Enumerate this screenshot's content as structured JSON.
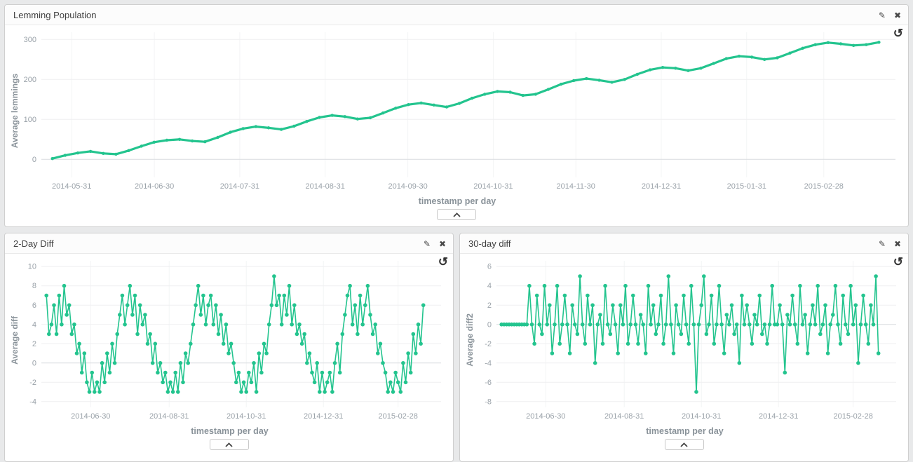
{
  "accent": {
    "line_color": "#23c48e"
  },
  "icons": {
    "edit": "✎",
    "close": "✖",
    "rotate": "↺"
  },
  "panels": [
    {
      "title": "Lemming Population",
      "ylabel": "Average lemmings",
      "xlabel": "timestamp per day"
    },
    {
      "title": "2-Day Diff",
      "ylabel": "Average diff",
      "xlabel": "timestamp per day"
    },
    {
      "title": "30-day diff",
      "ylabel": "Average diff2",
      "xlabel": "timestamp per day"
    }
  ],
  "chart_data": [
    {
      "type": "line",
      "title": "Lemming Population",
      "xlabel": "timestamp per day",
      "ylabel": "Average lemmings",
      "grid": true,
      "legend": "none",
      "x_range": [
        -4,
        306
      ],
      "y_range": [
        -45,
        318
      ],
      "x_start": 0,
      "x_end": 300,
      "line_width": 3.2,
      "marker_radius": 2.2,
      "x_ticks": [
        [
          7,
          "2014-05-31"
        ],
        [
          37,
          "2014-06-30"
        ],
        [
          68,
          "2014-07-31"
        ],
        [
          99,
          "2014-08-31"
        ],
        [
          129,
          "2014-09-30"
        ],
        [
          160,
          "2014-10-31"
        ],
        [
          190,
          "2014-11-30"
        ],
        [
          221,
          "2014-12-31"
        ],
        [
          252,
          "2015-01-31"
        ],
        [
          280,
          "2015-02-28"
        ]
      ],
      "y_ticks": [
        [
          0,
          "0"
        ],
        [
          100,
          "100"
        ],
        [
          200,
          "200"
        ],
        [
          300,
          "300"
        ]
      ],
      "values": [
        2,
        10,
        16,
        20,
        15,
        13,
        22,
        33,
        43,
        48,
        50,
        46,
        44,
        55,
        68,
        77,
        82,
        79,
        75,
        83,
        95,
        105,
        110,
        107,
        101,
        104,
        116,
        128,
        137,
        141,
        136,
        131,
        140,
        153,
        163,
        170,
        168,
        160,
        163,
        175,
        188,
        197,
        202,
        198,
        193,
        200,
        213,
        224,
        230,
        228,
        222,
        228,
        240,
        252,
        258,
        256,
        250,
        254,
        266,
        278,
        287,
        292,
        289,
        285,
        287,
        293
      ]
    },
    {
      "type": "line",
      "title": "2-Day Diff",
      "xlabel": "timestamp per day",
      "ylabel": "Average diff",
      "grid": true,
      "legend": "none",
      "x_range": [
        -4,
        312
      ],
      "y_range": [
        -4.6,
        10.6
      ],
      "x_start": 0,
      "x_end": 298,
      "line_width": 1.6,
      "marker_radius": 2.8,
      "x_ticks": [
        [
          35,
          "2014-06-30"
        ],
        [
          97,
          "2014-08-31"
        ],
        [
          158,
          "2014-10-31"
        ],
        [
          219,
          "2014-12-31"
        ],
        [
          278,
          "2015-02-28"
        ]
      ],
      "y_ticks": [
        [
          -4,
          "-4"
        ],
        [
          -2,
          "-2"
        ],
        [
          0,
          "0"
        ],
        [
          2,
          "2"
        ],
        [
          4,
          "4"
        ],
        [
          6,
          "6"
        ],
        [
          8,
          "8"
        ],
        [
          10,
          "10"
        ]
      ],
      "values": [
        7,
        3,
        4,
        6,
        3,
        7,
        4,
        8,
        5,
        6,
        3,
        4,
        1,
        2,
        -1,
        1,
        -2,
        -3,
        -1,
        -3,
        -2,
        -3,
        0,
        -2,
        1,
        -1,
        2,
        0,
        3,
        5,
        7,
        4,
        6,
        8,
        5,
        7,
        3,
        6,
        4,
        5,
        2,
        3,
        0,
        2,
        -1,
        0,
        -2,
        -1,
        -3,
        -2,
        -3,
        -1,
        -3,
        0,
        -2,
        1,
        0,
        2,
        4,
        6,
        8,
        5,
        7,
        4,
        6,
        7,
        4,
        6,
        3,
        5,
        2,
        4,
        1,
        2,
        0,
        -2,
        -1,
        -3,
        -2,
        -3,
        -1,
        -2,
        0,
        -3,
        1,
        -1,
        2,
        1,
        4,
        6,
        9,
        6,
        7,
        4,
        7,
        5,
        8,
        4,
        6,
        3,
        4,
        2,
        3,
        0,
        1,
        -1,
        -2,
        0,
        -3,
        -1,
        -3,
        -2,
        -1,
        -3,
        0,
        2,
        -1,
        3,
        5,
        7,
        8,
        4,
        6,
        3,
        7,
        4,
        6,
        8,
        5,
        3,
        4,
        1,
        2,
        0,
        -1,
        -3,
        -2,
        -3,
        -1,
        -2,
        -3,
        0,
        -2,
        1,
        -1,
        3,
        1,
        4,
        2,
        6
      ]
    },
    {
      "type": "line",
      "title": "30-day diff",
      "xlabel": "timestamp per day",
      "ylabel": "Average diff2",
      "grid": true,
      "legend": "none",
      "x_range": [
        -4,
        312
      ],
      "y_range": [
        -8.6,
        6.6
      ],
      "x_start": 0,
      "x_end": 298,
      "line_width": 1.6,
      "marker_radius": 2.8,
      "x_ticks": [
        [
          35,
          "2014-06-30"
        ],
        [
          97,
          "2014-08-31"
        ],
        [
          158,
          "2014-10-31"
        ],
        [
          219,
          "2014-12-31"
        ],
        [
          278,
          "2015-02-28"
        ]
      ],
      "y_ticks": [
        [
          -8,
          "-8"
        ],
        [
          -6,
          "-6"
        ],
        [
          -4,
          "-4"
        ],
        [
          -2,
          "-2"
        ],
        [
          0,
          "0"
        ],
        [
          2,
          "2"
        ],
        [
          4,
          "4"
        ],
        [
          6,
          "6"
        ]
      ],
      "values": [
        0,
        0,
        0,
        0,
        0,
        0,
        0,
        0,
        0,
        0,
        0,
        4,
        0,
        -2,
        3,
        0,
        -1,
        4,
        0,
        2,
        -3,
        0,
        4,
        -2,
        0,
        3,
        0,
        -3,
        2,
        0,
        -1,
        5,
        0,
        -2,
        3,
        0,
        2,
        -4,
        0,
        1,
        -2,
        4,
        0,
        -1,
        2,
        0,
        -3,
        2,
        0,
        4,
        -2,
        0,
        3,
        0,
        -2,
        1,
        0,
        -3,
        4,
        0,
        2,
        -1,
        0,
        3,
        -2,
        0,
        5,
        0,
        -3,
        2,
        0,
        -1,
        3,
        0,
        -2,
        4,
        0,
        -7,
        0,
        2,
        5,
        -1,
        0,
        3,
        -2,
        0,
        4,
        0,
        -3,
        1,
        0,
        2,
        -1,
        0,
        -4,
        3,
        0,
        2,
        0,
        -2,
        1,
        0,
        3,
        -1,
        0,
        -2,
        0,
        4,
        0,
        0,
        2,
        0,
        -5,
        1,
        0,
        3,
        0,
        -2,
        4,
        0,
        1,
        -3,
        0,
        2,
        0,
        4,
        -1,
        0,
        2,
        -3,
        0,
        1,
        4,
        0,
        -2,
        3,
        0,
        -1,
        4,
        0,
        2,
        -4,
        0,
        3,
        0,
        -2,
        2,
        0,
        5,
        -3
      ]
    }
  ]
}
